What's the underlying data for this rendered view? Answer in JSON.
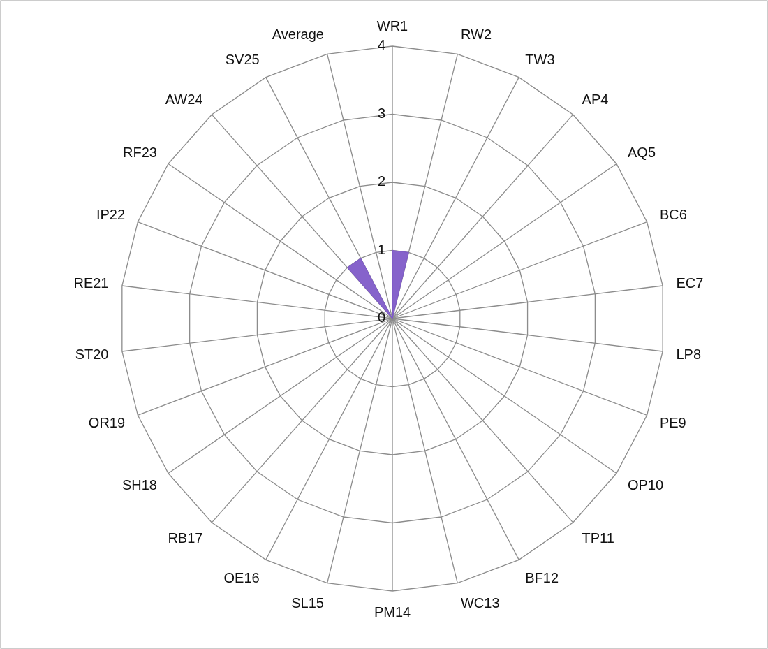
{
  "chart_data": {
    "type": "radar",
    "categories": [
      "WR1",
      "RW2",
      "TW3",
      "AP4",
      "AQ5",
      "BC6",
      "EC7",
      "LP8",
      "PE9",
      "OP10",
      "TP11",
      "BF12",
      "WC13",
      "PM14",
      "SL15",
      "OE16",
      "RB17",
      "SH18",
      "OR19",
      "ST20",
      "RE21",
      "IP22",
      "RF23",
      "AW24",
      "SV25",
      "Average"
    ],
    "series": [
      {
        "color": "#7f5bc8",
        "values": [
          1,
          1,
          0,
          0,
          0,
          0,
          0,
          0,
          0,
          0,
          0,
          0,
          0,
          0,
          0,
          0,
          0,
          0,
          0,
          0,
          0,
          0,
          0,
          1,
          1,
          0
        ]
      }
    ],
    "ylim": [
      0,
      4
    ],
    "yticks": [
      0,
      1,
      2,
      3,
      4
    ],
    "grid": true
  }
}
